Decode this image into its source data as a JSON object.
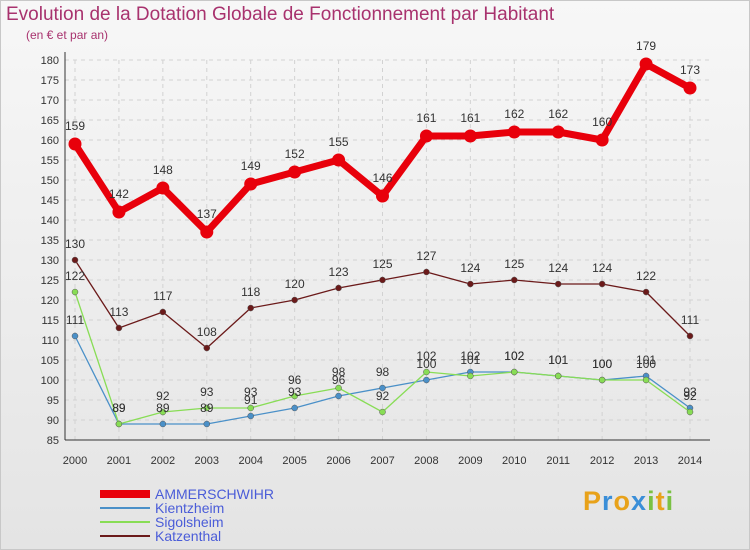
{
  "chart_data": {
    "type": "line",
    "title": "Evolution de la Dotation Globale de Fonctionnement par Habitant",
    "subtitle": "(en € et par an)",
    "x": [
      "2000",
      "2001",
      "2002",
      "2003",
      "2004",
      "2005",
      "2006",
      "2007",
      "2008",
      "2009",
      "2010",
      "2011",
      "2012",
      "2013",
      "2014"
    ],
    "ylim": [
      85,
      180
    ],
    "yticks": [
      85,
      90,
      95,
      100,
      105,
      110,
      115,
      120,
      125,
      130,
      135,
      140,
      145,
      150,
      155,
      160,
      165,
      170,
      175,
      180
    ],
    "series": [
      {
        "name": "AMMERSCHWIHR",
        "color": "#e8000b",
        "values": [
          159,
          142,
          148,
          137,
          149,
          152,
          155,
          146,
          161,
          161,
          162,
          162,
          160,
          179,
          173
        ]
      },
      {
        "name": "Kientzheim",
        "color": "#4a90c8",
        "values": [
          111,
          89,
          89,
          89,
          91,
          93,
          96,
          98,
          100,
          102,
          102,
          101,
          100,
          101,
          93
        ]
      },
      {
        "name": "Sigolsheim",
        "color": "#88dd55",
        "values": [
          122,
          89,
          92,
          93,
          93,
          96,
          98,
          92,
          102,
          101,
          102,
          101,
          100,
          100,
          92
        ]
      },
      {
        "name": "Katzenthal",
        "color": "#6b1a1a",
        "values": [
          130,
          113,
          117,
          108,
          118,
          120,
          123,
          125,
          127,
          124,
          125,
          124,
          124,
          122,
          111
        ]
      }
    ]
  },
  "logo": {
    "letters": [
      "P",
      "r",
      "o",
      "x",
      "i",
      "t",
      "i"
    ],
    "colors": [
      "#e8a21a",
      "#3a8ed8",
      "#e8a21a",
      "#3a8ed8",
      "#7ac143",
      "#e8a21a",
      "#7ac143"
    ]
  }
}
